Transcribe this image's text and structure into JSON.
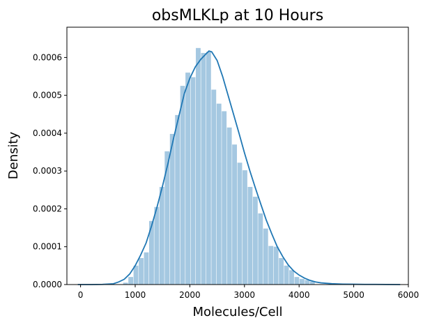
{
  "chart_data": {
    "type": "bar",
    "title": "obsMLKLp at 10 Hours",
    "xlabel": "Molecules/Cell",
    "ylabel": "Density",
    "xlim": [
      -250,
      6000
    ],
    "ylim": [
      0,
      0.00068
    ],
    "xticks": [
      0,
      1000,
      2000,
      3000,
      4000,
      5000,
      6000
    ],
    "xtick_labels": [
      "0",
      "1000",
      "2000",
      "3000",
      "4000",
      "5000",
      "6000"
    ],
    "yticks": [
      0,
      0.0001,
      0.0002,
      0.0003,
      0.0004,
      0.0005,
      0.0006
    ],
    "ytick_labels": [
      "0.0000",
      "0.0001",
      "0.0002",
      "0.0003",
      "0.0004",
      "0.0005",
      "0.0006"
    ],
    "grid": false,
    "histogram": {
      "bin_start": 780,
      "bin_width": 95,
      "values": [
        5e-06,
        2e-05,
        5e-05,
        7e-05,
        8.5e-05,
        0.000168,
        0.000205,
        0.000258,
        0.000352,
        0.000398,
        0.000448,
        0.000525,
        0.00056,
        0.000548,
        0.000625,
        0.000612,
        0.000615,
        0.000515,
        0.000478,
        0.000458,
        0.000415,
        0.00037,
        0.000322,
        0.000302,
        0.000258,
        0.000232,
        0.000188,
        0.000148,
        0.000102,
        0.0001,
        7e-05,
        5e-05,
        3.8e-05,
        2e-05,
        1.5e-05,
        1.2e-05,
        8e-06
      ],
      "color": "#a5c8e1"
    },
    "kde": {
      "x": [
        -50,
        200,
        400,
        600,
        700,
        800,
        900,
        1000,
        1100,
        1200,
        1300,
        1400,
        1500,
        1600,
        1700,
        1800,
        1900,
        2000,
        2100,
        2200,
        2300,
        2350,
        2400,
        2500,
        2600,
        2700,
        2800,
        2900,
        3000,
        3100,
        3200,
        3300,
        3400,
        3500,
        3600,
        3700,
        3800,
        3900,
        4000,
        4100,
        4200,
        4300,
        4400,
        4600,
        4800,
        5000,
        5200,
        5400,
        5600,
        5850
      ],
      "y": [
        0.0,
        0.0,
        5e-07,
        2e-06,
        7e-06,
        1.4e-05,
        2.8e-05,
        5e-05,
        7.8e-05,
        0.00011,
        0.000155,
        0.000205,
        0.00026,
        0.00032,
        0.000385,
        0.000445,
        0.000505,
        0.000545,
        0.000575,
        0.000595,
        0.00061,
        0.000617,
        0.000615,
        0.000592,
        0.00055,
        0.0005,
        0.00045,
        0.0004,
        0.000348,
        0.0003,
        0.000255,
        0.000212,
        0.00017,
        0.000134,
        0.0001,
        7.4e-05,
        5.2e-05,
        3.6e-05,
        2.5e-05,
        1.7e-05,
        1.1e-05,
        7e-06,
        4.5e-06,
        2.2e-06,
        1.2e-06,
        8e-07,
        5e-07,
        4e-07,
        3e-07,
        0.0
      ],
      "color": "#1f77b4"
    }
  }
}
